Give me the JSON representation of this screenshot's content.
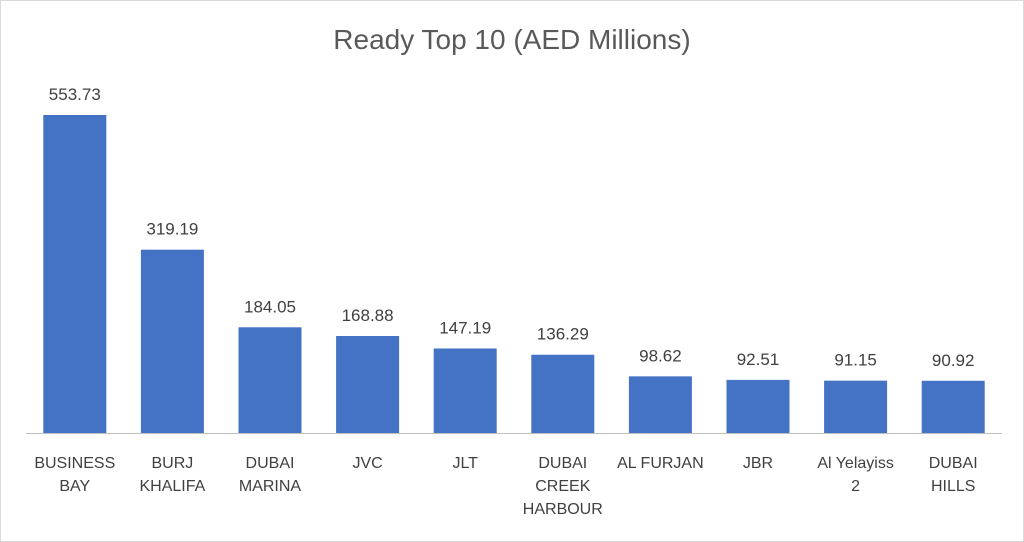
{
  "chart_data": {
    "type": "bar",
    "title": "Ready Top 10 (AED Millions)",
    "categories": [
      [
        "BUSINESS",
        "BAY"
      ],
      [
        "BURJ",
        "KHALIFA"
      ],
      [
        "DUBAI",
        "MARINA"
      ],
      [
        "JVC"
      ],
      [
        "JLT"
      ],
      [
        "DUBAI",
        "CREEK",
        "HARBOUR"
      ],
      [
        "AL FURJAN"
      ],
      [
        "JBR"
      ],
      [
        "Al Yelayiss",
        "2"
      ],
      [
        "DUBAI",
        "HILLS"
      ]
    ],
    "values": [
      553.73,
      319.19,
      184.05,
      168.88,
      147.19,
      136.29,
      98.62,
      92.51,
      91.15,
      90.92
    ],
    "value_labels": [
      "553.73",
      "319.19",
      "184.05",
      "168.88",
      "147.19",
      "136.29",
      "98.62",
      "92.51",
      "91.15",
      "90.92"
    ],
    "bar_color": "#4472c4",
    "ylim": [
      0,
      553.73
    ],
    "grid": false,
    "legend": "none"
  }
}
